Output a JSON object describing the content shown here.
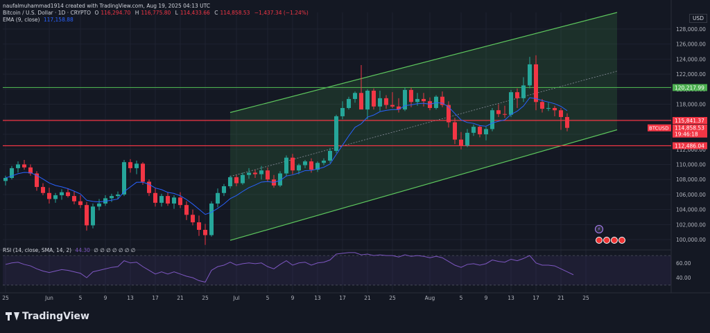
{
  "header": {
    "author_line": "naufalmuhammad1914 created with TradingView.com, Aug 19, 2025 04:13 UTC",
    "symbol": "Bitcoin / U.S. Dollar · 1D · CRYPTO",
    "open_label": "O",
    "open": "116,294.70",
    "high_label": "H",
    "high": "116,775.80",
    "low_label": "L",
    "low": "114,433.66",
    "close_label": "C",
    "close": "114,858.53",
    "change": "−1,437.34 (−1.24%)",
    "ema_label": "EMA (9, close)",
    "ema_value": "117,158.88",
    "rsi_label": "RSI (14, close, SMA, 14, 2)",
    "rsi_value": "44.30",
    "rsi_extra": "∅ ∅ ∅ ∅ ∅ ∅ ∅",
    "currency": "USD"
  },
  "brand": {
    "name": "TradingView",
    "icon": "tradingview-logo-icon"
  },
  "colors": {
    "bg": "#141823",
    "up": "#26a69a",
    "down": "#f23645",
    "ema": "#2962ff",
    "channel": "#5ec85e",
    "rsi": "#7e57c2",
    "level_green": "#4caf50",
    "level_red": "#f23645"
  },
  "chart_data": {
    "type": "candlestick",
    "price_axis": {
      "ylim": [
        99000,
        130200
      ],
      "ticks": [
        100000,
        102000,
        104000,
        106000,
        108000,
        110000,
        112000,
        114000,
        116000,
        118000,
        120000,
        122000,
        124000,
        126000,
        128000
      ],
      "tick_labels": [
        "100,000.00",
        "102,000.00",
        "104,000.00",
        "106,000.00",
        "108,000.00",
        "110,000.00",
        "112,000.00",
        "114,000.00",
        "116,000.00",
        "118,000.00",
        "120,000.00",
        "122,000.00",
        "124,000.00",
        "126,000.00",
        "128,000.00"
      ]
    },
    "x_axis": {
      "labels": [
        "25",
        "Jun",
        "5",
        "9",
        "13",
        "17",
        "21",
        "25",
        "Jul",
        "5",
        "9",
        "13",
        "17",
        "21",
        "25",
        "Aug",
        "5",
        "9",
        "13",
        "17",
        "21",
        "25"
      ],
      "label_index": [
        0,
        7,
        12,
        16,
        20,
        24,
        28,
        32,
        37,
        42,
        46,
        50,
        54,
        58,
        62,
        68,
        73,
        77,
        81,
        85,
        89,
        93
      ]
    },
    "levels": [
      {
        "price": 120217.99,
        "label": "120,217.99",
        "color": "#4caf50"
      },
      {
        "price": 115841.37,
        "label": "115,841.37",
        "color": "#f23645"
      },
      {
        "price": 112486.04,
        "label": "112,486.04",
        "color": "#f23645"
      }
    ],
    "last_price": {
      "symbol": "BTCUSD",
      "price": "114,858.53",
      "countdown": "19:46:18",
      "value": 114858.53
    },
    "channel": {
      "lower": [
        [
          36,
          99900
        ],
        [
          98,
          114600
        ]
      ],
      "upper": [
        [
          36,
          116900
        ],
        [
          98,
          130200
        ]
      ]
    },
    "candles": [
      [
        107800,
        108500,
        107200,
        108200
      ],
      [
        108200,
        109800,
        108000,
        109500
      ],
      [
        109500,
        110400,
        108900,
        110000
      ],
      [
        110000,
        110600,
        109300,
        109600
      ],
      [
        109600,
        110000,
        108500,
        108800
      ],
      [
        108800,
        109100,
        106500,
        107000
      ],
      [
        107000,
        107500,
        105900,
        106200
      ],
      [
        106200,
        106900,
        104800,
        105400
      ],
      [
        105400,
        106200,
        104900,
        105900
      ],
      [
        105900,
        106700,
        105300,
        106300
      ],
      [
        106300,
        106800,
        105600,
        105800
      ],
      [
        105800,
        106400,
        104700,
        105100
      ],
      [
        105100,
        105900,
        104200,
        104600
      ],
      [
        104600,
        105000,
        101200,
        101900
      ],
      [
        101900,
        104800,
        101500,
        104400
      ],
      [
        104400,
        105400,
        103900,
        104800
      ],
      [
        104800,
        105900,
        104500,
        105500
      ],
      [
        105500,
        106100,
        105000,
        105800
      ],
      [
        105800,
        106400,
        105400,
        106000
      ],
      [
        106000,
        110600,
        105800,
        110300
      ],
      [
        110300,
        110700,
        108900,
        109500
      ],
      [
        109500,
        110500,
        108700,
        110100
      ],
      [
        110100,
        110300,
        107300,
        107700
      ],
      [
        107700,
        108000,
        105800,
        106200
      ],
      [
        106200,
        106900,
        104400,
        104900
      ],
      [
        104900,
        106100,
        104400,
        105800
      ],
      [
        105800,
        106300,
        104500,
        104800
      ],
      [
        104800,
        105900,
        104100,
        105600
      ],
      [
        105600,
        106300,
        104200,
        104600
      ],
      [
        104600,
        105100,
        102600,
        103300
      ],
      [
        103300,
        104000,
        101900,
        102300
      ],
      [
        102300,
        103200,
        100500,
        101300
      ],
      [
        101300,
        102100,
        99300,
        100600
      ],
      [
        100600,
        105100,
        100400,
        104800
      ],
      [
        104800,
        106800,
        104300,
        106200
      ],
      [
        106200,
        107400,
        105800,
        107100
      ],
      [
        107100,
        108500,
        106800,
        108300
      ],
      [
        108300,
        108600,
        107100,
        107500
      ],
      [
        107500,
        108900,
        107300,
        108600
      ],
      [
        108600,
        109500,
        108100,
        108900
      ],
      [
        108900,
        109300,
        108200,
        108700
      ],
      [
        108700,
        109800,
        108000,
        109200
      ],
      [
        109200,
        109600,
        107700,
        108000
      ],
      [
        108000,
        108600,
        106900,
        107200
      ],
      [
        107200,
        109100,
        107000,
        108800
      ],
      [
        108800,
        111200,
        108400,
        110900
      ],
      [
        110900,
        111400,
        108700,
        109200
      ],
      [
        109200,
        110100,
        108700,
        109900
      ],
      [
        109900,
        110600,
        109500,
        110400
      ],
      [
        110400,
        110800,
        108900,
        109300
      ],
      [
        109300,
        110400,
        109000,
        110200
      ],
      [
        110200,
        110800,
        109900,
        110500
      ],
      [
        110500,
        112200,
        110200,
        111800
      ],
      [
        111800,
        116600,
        111500,
        116400
      ],
      [
        116400,
        118400,
        116000,
        117500
      ],
      [
        117500,
        119000,
        117300,
        118700
      ],
      [
        118700,
        119700,
        118200,
        119500
      ],
      [
        119500,
        123200,
        117500,
        117300
      ],
      [
        117300,
        120000,
        116000,
        119800
      ],
      [
        119800,
        120100,
        117300,
        117700
      ],
      [
        117700,
        119800,
        117100,
        118800
      ],
      [
        118800,
        119200,
        117400,
        117900
      ],
      [
        117900,
        119600,
        117500,
        117700
      ],
      [
        117700,
        118800,
        116900,
        117300
      ],
      [
        117300,
        120200,
        117100,
        119900
      ],
      [
        119900,
        120200,
        117600,
        118300
      ],
      [
        118300,
        119500,
        117800,
        118700
      ],
      [
        118700,
        119500,
        117700,
        118400
      ],
      [
        118400,
        118900,
        117200,
        117500
      ],
      [
        117500,
        119200,
        117300,
        119000
      ],
      [
        119000,
        119700,
        117600,
        117900
      ],
      [
        117900,
        118400,
        114900,
        115600
      ],
      [
        115600,
        116200,
        112700,
        113300
      ],
      [
        113300,
        114300,
        112000,
        112500
      ],
      [
        112500,
        114700,
        112300,
        114200
      ],
      [
        114200,
        115300,
        113800,
        115000
      ],
      [
        115000,
        115200,
        113600,
        114000
      ],
      [
        114000,
        115000,
        113200,
        114700
      ],
      [
        114700,
        117500,
        114400,
        117200
      ],
      [
        117200,
        118000,
        116300,
        116700
      ],
      [
        116700,
        117800,
        116200,
        116600
      ],
      [
        116600,
        119900,
        116300,
        119600
      ],
      [
        119600,
        120100,
        117500,
        118800
      ],
      [
        118800,
        121600,
        118300,
        120500
      ],
      [
        120500,
        124300,
        120100,
        123300
      ],
      [
        123300,
        124500,
        117200,
        118300
      ],
      [
        118300,
        118700,
        116900,
        117400
      ],
      [
        117400,
        118200,
        117100,
        117500
      ],
      [
        117500,
        117800,
        116400,
        117200
      ],
      [
        117200,
        117500,
        114600,
        116300
      ],
      [
        116300,
        116800,
        114400,
        114858
      ]
    ],
    "candle_start_index": 0,
    "ema_color": "#2962ff",
    "rsi": {
      "ylim": [
        27,
        72
      ],
      "ticks": [
        40,
        60
      ],
      "tick_labels": [
        "40.00",
        "60.00"
      ],
      "band": [
        30,
        70
      ],
      "values": [
        58,
        60,
        61,
        58,
        56,
        52,
        49,
        47,
        49,
        51,
        50,
        48,
        46,
        40,
        48,
        50,
        52,
        54,
        55,
        63,
        60,
        61,
        55,
        50,
        45,
        48,
        45,
        48,
        45,
        42,
        40,
        36,
        34,
        50,
        55,
        57,
        61,
        57,
        59,
        60,
        59,
        60,
        55,
        52,
        58,
        63,
        57,
        60,
        61,
        57,
        60,
        61,
        64,
        72,
        73,
        74,
        74,
        71,
        72,
        70,
        71,
        70,
        70,
        68,
        71,
        69,
        70,
        69,
        67,
        69,
        67,
        62,
        57,
        54,
        58,
        59,
        57,
        59,
        64,
        62,
        61,
        65,
        63,
        66,
        70,
        60,
        57,
        57,
        56,
        52,
        48,
        44
      ]
    }
  }
}
